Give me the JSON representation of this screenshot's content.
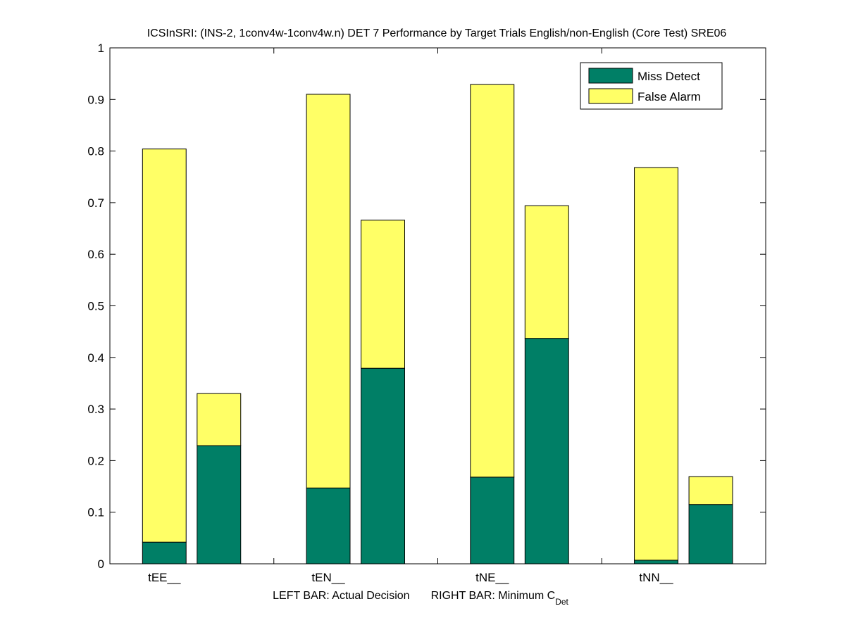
{
  "chart_data": {
    "type": "bar",
    "stacked": true,
    "title": "ICSInSRI: (INS-2, 1conv4w-1conv4w.n) DET 7 Performance by Target Trials English/non-English (Core Test) SRE06",
    "xlabel_left": "LEFT BAR: Actual Decision",
    "xlabel_right": "RIGHT BAR: Minimum C",
    "xlabel_right_sub": "Det",
    "ylabel": "",
    "ylim": [
      0,
      1
    ],
    "yticks": [
      "0",
      "0.1",
      "0.2",
      "0.3",
      "0.4",
      "0.5",
      "0.6",
      "0.7",
      "0.8",
      "0.9",
      "1"
    ],
    "categories": [
      "tEE__",
      "tEN__",
      "tNE__",
      "tNN__"
    ],
    "bars": [
      "Actual Decision",
      "Minimum CDet"
    ],
    "series": [
      {
        "name": "Miss Detect",
        "color": "#007f66",
        "actual": [
          0.042,
          0.147,
          0.168,
          0.007
        ],
        "minimum": [
          0.229,
          0.379,
          0.437,
          0.115
        ]
      },
      {
        "name": "False Alarm",
        "color": "#ffff66",
        "actual": [
          0.762,
          0.763,
          0.761,
          0.761
        ],
        "minimum": [
          0.101,
          0.287,
          0.257,
          0.054
        ]
      }
    ],
    "legend": {
      "position": "top-right",
      "entries": [
        "Miss Detect",
        "False Alarm"
      ]
    },
    "grid": false
  }
}
